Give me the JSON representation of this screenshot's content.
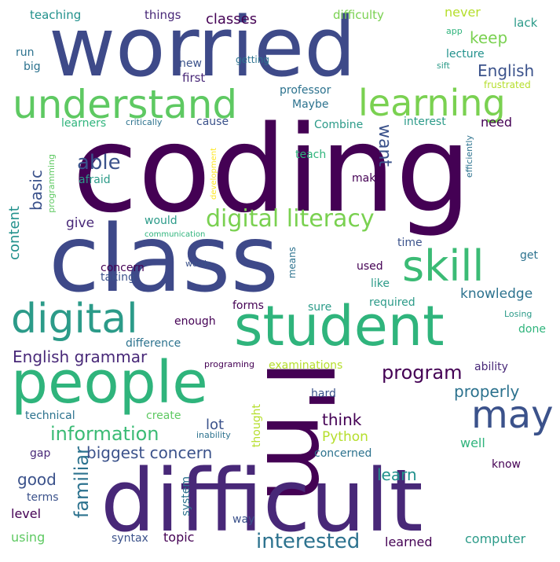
{
  "palette": {
    "dark_purple": "#440154",
    "indigo": "#3b528b",
    "blue": "#2c728e",
    "teal": "#21918c",
    "green": "#5ec962",
    "lime": "#b5de2b",
    "yellow": "#fde725"
  },
  "words": [
    {
      "text": "coding",
      "color": "#440154"
    },
    {
      "text": "worried",
      "color": "#3e4a89"
    },
    {
      "text": "class",
      "color": "#3e4989"
    },
    {
      "text": "I'm",
      "color": "#440154"
    },
    {
      "text": "difficult",
      "color": "#482878"
    },
    {
      "text": "people",
      "color": "#2fb47c"
    },
    {
      "text": "student",
      "color": "#2fb47c"
    },
    {
      "text": "understand",
      "color": "#5ec962"
    },
    {
      "text": "learning",
      "color": "#7ad151"
    },
    {
      "text": "digital",
      "color": "#2c9b89"
    },
    {
      "text": "skill",
      "color": "#3bbb75"
    },
    {
      "text": "digital literacy",
      "color": "#7ad151"
    },
    {
      "text": "may",
      "color": "#3b528b"
    },
    {
      "text": "information",
      "color": "#3bbb75"
    },
    {
      "text": "interested",
      "color": "#2c728e"
    },
    {
      "text": "program",
      "color": "#440154"
    },
    {
      "text": "biggest concern",
      "color": "#3b528b"
    },
    {
      "text": "English grammar",
      "color": "#482878"
    },
    {
      "text": "familiar",
      "color": "#2c728e"
    },
    {
      "text": "able",
      "color": "#3b528b"
    },
    {
      "text": "properly",
      "color": "#2c728e"
    },
    {
      "text": "think",
      "color": "#440154"
    },
    {
      "text": "good",
      "color": "#3b528b"
    },
    {
      "text": "learn",
      "color": "#21918c"
    },
    {
      "text": "English",
      "color": "#3b528b"
    },
    {
      "text": "want",
      "color": "#3b528b"
    },
    {
      "text": "keep",
      "color": "#7ad151"
    },
    {
      "text": "basic",
      "color": "#3b528b"
    },
    {
      "text": "content",
      "color": "#21918c"
    },
    {
      "text": "knowledge",
      "color": "#2c728e"
    },
    {
      "text": "Python",
      "color": "#b5de2b"
    },
    {
      "text": "lot",
      "color": "#3b528b"
    },
    {
      "text": "classes",
      "color": "#440154"
    },
    {
      "text": "teaching",
      "color": "#21918c"
    },
    {
      "text": "things",
      "color": "#482878"
    },
    {
      "text": "difficulty",
      "color": "#7ad151"
    },
    {
      "text": "never",
      "color": "#b5de2b"
    },
    {
      "text": "lack",
      "color": "#2c9b89"
    },
    {
      "text": "app",
      "color": "#2fb47c"
    },
    {
      "text": "run",
      "color": "#2c728e"
    },
    {
      "text": "big",
      "color": "#2c728e"
    },
    {
      "text": "new",
      "color": "#3b528b"
    },
    {
      "text": "getting",
      "color": "#2c728e"
    },
    {
      "text": "lecture",
      "color": "#21918c"
    },
    {
      "text": "sift",
      "color": "#2c9b89"
    },
    {
      "text": "first",
      "color": "#482878"
    },
    {
      "text": "professor",
      "color": "#2c728e"
    },
    {
      "text": "Maybe",
      "color": "#2c728e"
    },
    {
      "text": "frustrated",
      "color": "#b5de2b"
    },
    {
      "text": "learners",
      "color": "#2fb47c"
    },
    {
      "text": "critically",
      "color": "#2c728e"
    },
    {
      "text": "cause",
      "color": "#3b528b"
    },
    {
      "text": "Combine",
      "color": "#2c9b89"
    },
    {
      "text": "interest",
      "color": "#2c9b89"
    },
    {
      "text": "need",
      "color": "#440154"
    },
    {
      "text": "teach",
      "color": "#2fb47c"
    },
    {
      "text": "make",
      "color": "#440154"
    },
    {
      "text": "afraid",
      "color": "#2c9b89"
    },
    {
      "text": "programming",
      "color": "#5ec962"
    },
    {
      "text": "development",
      "color": "#fde725"
    },
    {
      "text": "efficiently",
      "color": "#2c728e"
    },
    {
      "text": "give",
      "color": "#482878"
    },
    {
      "text": "would",
      "color": "#2c9b89"
    },
    {
      "text": "communication",
      "color": "#2fb47c"
    },
    {
      "text": "time",
      "color": "#3b528b"
    },
    {
      "text": "words",
      "color": "#3b528b"
    },
    {
      "text": "means",
      "color": "#2c728e"
    },
    {
      "text": "get",
      "color": "#2c728e"
    },
    {
      "text": "concern",
      "color": "#440154"
    },
    {
      "text": "taking",
      "color": "#3b528b"
    },
    {
      "text": "used",
      "color": "#440154"
    },
    {
      "text": "like",
      "color": "#2c9b89"
    },
    {
      "text": "enough",
      "color": "#440154"
    },
    {
      "text": "sure",
      "color": "#2c9b89"
    },
    {
      "text": "forms",
      "color": "#440154"
    },
    {
      "text": "required",
      "color": "#2c9b89"
    },
    {
      "text": "Losing",
      "color": "#2c9b89"
    },
    {
      "text": "done",
      "color": "#2fb47c"
    },
    {
      "text": "difference",
      "color": "#2c728e"
    },
    {
      "text": "programing",
      "color": "#440154"
    },
    {
      "text": "examinations",
      "color": "#b5de2b"
    },
    {
      "text": "ability",
      "color": "#482878"
    },
    {
      "text": "hard",
      "color": "#3b528b"
    },
    {
      "text": "technical",
      "color": "#2c728e"
    },
    {
      "text": "create",
      "color": "#5ec962"
    },
    {
      "text": "thought",
      "color": "#b5de2b"
    },
    {
      "text": "inability",
      "color": "#2c728e"
    },
    {
      "text": "gap",
      "color": "#482878"
    },
    {
      "text": "well",
      "color": "#2fb47c"
    },
    {
      "text": "concerned",
      "color": "#2c728e"
    },
    {
      "text": "know",
      "color": "#440154"
    },
    {
      "text": "terms",
      "color": "#3b528b"
    },
    {
      "text": "level",
      "color": "#440154"
    },
    {
      "text": "system",
      "color": "#2c728e"
    },
    {
      "text": "way",
      "color": "#3b528b"
    },
    {
      "text": "using",
      "color": "#5ec962"
    },
    {
      "text": "syntax",
      "color": "#3b528b"
    },
    {
      "text": "topic",
      "color": "#440154"
    },
    {
      "text": "learned",
      "color": "#440154"
    },
    {
      "text": "computer",
      "color": "#2c9b89"
    }
  ]
}
